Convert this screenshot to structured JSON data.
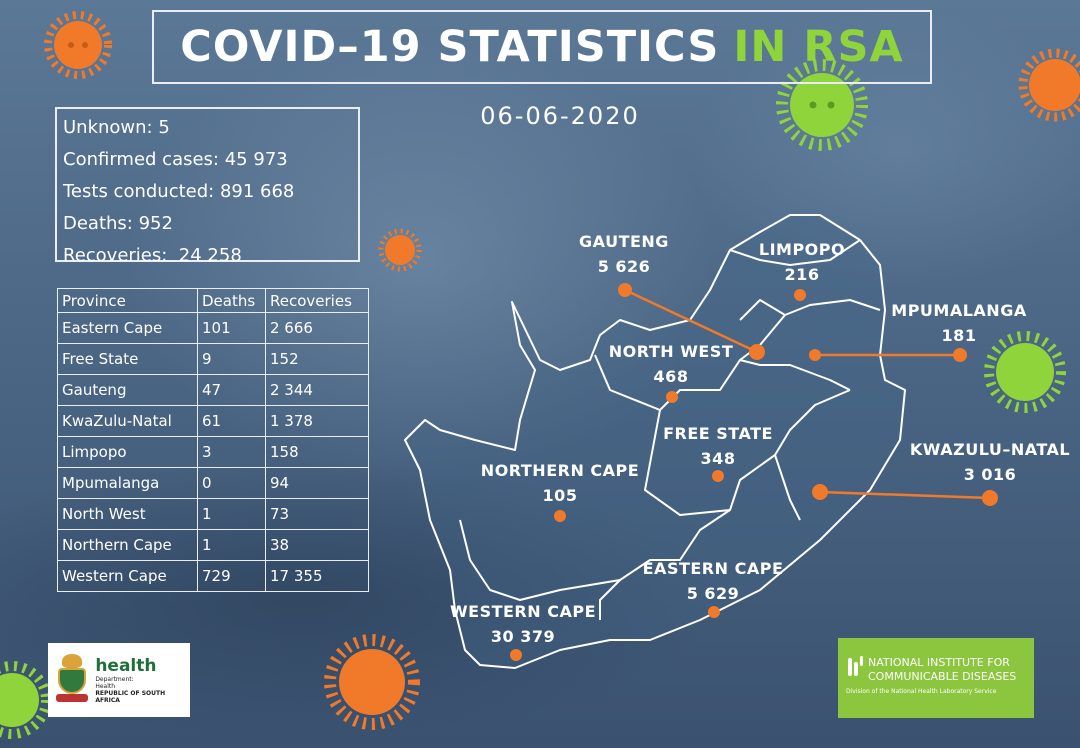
{
  "header": {
    "title_main": "COVID–19 STATISTICS",
    "title_accent": "IN RSA",
    "date": "06-06-2020"
  },
  "summary": [
    {
      "label": "Unknown:",
      "value": "5"
    },
    {
      "label": "Confirmed cases:",
      "value": "45 973"
    },
    {
      "label": "Tests conducted:",
      "value": "891 668"
    },
    {
      "label": "Deaths:",
      "value": "952"
    },
    {
      "label": "Recoveries:",
      "value": " 24 258"
    }
  ],
  "table": {
    "headers": [
      "Province",
      "Deaths",
      "Recoveries"
    ],
    "rows": [
      [
        "Eastern Cape",
        "101",
        "2 666"
      ],
      [
        "Free State",
        "9",
        "152"
      ],
      [
        "Gauteng",
        "47",
        "2 344"
      ],
      [
        "KwaZulu-Natal",
        "61",
        "1 378"
      ],
      [
        "Limpopo",
        "3",
        "158"
      ],
      [
        "Mpumalanga",
        "0",
        "94"
      ],
      [
        "North West",
        "1",
        "73"
      ],
      [
        "Northern Cape",
        "1",
        "38"
      ],
      [
        "Western Cape",
        "729",
        "17 355"
      ]
    ]
  },
  "map": {
    "provinces": [
      {
        "name": "GAUTENG",
        "cases": "5 626"
      },
      {
        "name": "LIMPOPO",
        "cases": "216"
      },
      {
        "name": "MPUMALANGA",
        "cases": "181"
      },
      {
        "name": "NORTH WEST",
        "cases": "468"
      },
      {
        "name": "FREE STATE",
        "cases": "348"
      },
      {
        "name": "KWAZULU–NATAL",
        "cases": "3 016"
      },
      {
        "name": "NORTHERN CAPE",
        "cases": "105"
      },
      {
        "name": "EASTERN CAPE",
        "cases": "5 629"
      },
      {
        "name": "WESTERN CAPE",
        "cases": "30 379"
      }
    ],
    "marker_color": "#f07a2a",
    "outline_color": "#ffffff"
  },
  "logos": {
    "health": {
      "name": "health",
      "line1": "Department:",
      "line2": "Health",
      "line3": "REPUBLIC OF SOUTH AFRICA"
    },
    "nicd": {
      "line1": "NATIONAL INSTITUTE FOR",
      "line2": "COMMUNICABLE DISEASES",
      "line3": "Division of the National Health Laboratory Service"
    }
  },
  "colors": {
    "accent_green": "#8fd43a",
    "virus_orange": "#f07a2a",
    "virus_green": "#8fd43a"
  }
}
